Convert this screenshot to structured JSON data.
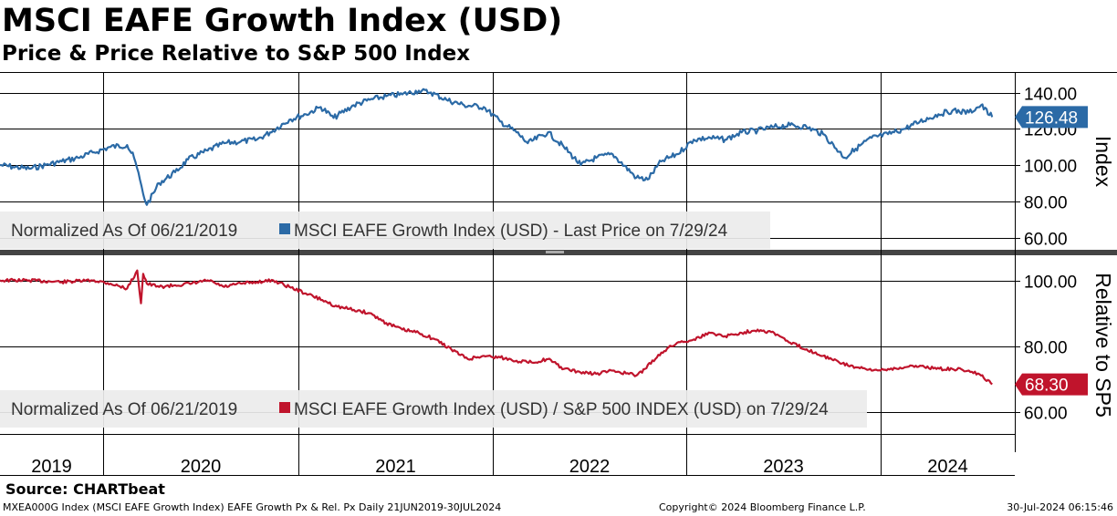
{
  "title": "MSCI EAFE Growth Index (USD)",
  "subtitle": "Price & Price Relative to S&P 500 Index",
  "source": "Source: CHARTbeat",
  "footer": {
    "left": "MXEA000G Index (MSCI EAFE Growth Index) EAFE Growth Px & Rel. Px  Daily 21JUN2019-30JUL2024",
    "center": "Copyright© 2024 Bloomberg Finance L.P.",
    "right": "30-Jul-2024 06:15:46"
  },
  "colors": {
    "price": "#2b6aa6",
    "relative": "#c0142c",
    "grid": "#000000"
  },
  "chart_data": [
    {
      "type": "line",
      "ylabel": "Index",
      "ylim": [
        56,
        148
      ],
      "yticks": [
        60,
        80,
        100,
        120,
        140
      ],
      "ytick_labels": [
        "60.00",
        "80.00",
        "100.00",
        "120.00",
        "140.00"
      ],
      "legend": "Normalized As Of 06/21/2019",
      "legend_series": "MSCI EAFE Growth Index (USD) - Last Price on 7/29/24",
      "last_value_label": "126.48",
      "series": [
        {
          "name": "MSCI EAFE Growth Index (USD) - Last Price on 7/29/24",
          "x": [
            "2019-06-21",
            "2019-07-15",
            "2019-08-15",
            "2019-09-15",
            "2019-10-15",
            "2019-11-15",
            "2019-12-15",
            "2020-01-15",
            "2020-02-15",
            "2020-02-28",
            "2020-03-10",
            "2020-03-16",
            "2020-03-23",
            "2020-04-15",
            "2020-05-15",
            "2020-06-08",
            "2020-07-15",
            "2020-08-15",
            "2020-09-15",
            "2020-10-15",
            "2020-11-09",
            "2020-12-15",
            "2021-01-15",
            "2021-02-12",
            "2021-03-08",
            "2021-04-15",
            "2021-05-15",
            "2021-06-15",
            "2021-07-15",
            "2021-08-15",
            "2021-09-07",
            "2021-10-06",
            "2021-11-08",
            "2021-12-15",
            "2022-01-15",
            "2022-02-15",
            "2022-03-08",
            "2022-04-15",
            "2022-05-15",
            "2022-06-16",
            "2022-07-15",
            "2022-08-15",
            "2022-09-29",
            "2022-10-20",
            "2022-11-15",
            "2022-12-15",
            "2023-01-15",
            "2023-02-15",
            "2023-03-15",
            "2023-04-15",
            "2023-05-15",
            "2023-06-15",
            "2023-07-15",
            "2023-08-15",
            "2023-09-15",
            "2023-10-26",
            "2023-11-15",
            "2023-12-15",
            "2024-01-15",
            "2024-02-15",
            "2024-03-15",
            "2024-04-19",
            "2024-05-15",
            "2024-06-15",
            "2024-07-08",
            "2024-07-29"
          ],
          "values": [
            100,
            99,
            98,
            100,
            102,
            104,
            107,
            110,
            111,
            104,
            92,
            84,
            78,
            90,
            96,
            103,
            108,
            112,
            113,
            114,
            118,
            125,
            128,
            132,
            126,
            133,
            136,
            138,
            139,
            141,
            140,
            136,
            133,
            132,
            124,
            118,
            112,
            118,
            110,
            100,
            104,
            106,
            93,
            92,
            102,
            106,
            114,
            115,
            114,
            118,
            119,
            121,
            122,
            121,
            117,
            104,
            109,
            115,
            117,
            120,
            124,
            128,
            130,
            129,
            133,
            126.48
          ]
        }
      ]
    },
    {
      "type": "line",
      "ylabel": "Relative to SP5",
      "ylim": [
        57,
        108
      ],
      "yticks": [
        60,
        80,
        100
      ],
      "ytick_labels": [
        "60.00",
        "80.00",
        "100.00"
      ],
      "legend": "Normalized As Of 06/21/2019",
      "legend_series": "MSCI EAFE Growth Index (USD) / S&P 500 INDEX (USD) on 7/29/24",
      "last_value_label": "68.30",
      "xtick_labels": [
        "2019",
        "2020",
        "2021",
        "2022",
        "2023",
        "2024"
      ],
      "series": [
        {
          "name": "MSCI EAFE Growth Index (USD) / S&P 500 INDEX (USD) on 7/29/24",
          "x": [
            "2019-06-21",
            "2019-08-15",
            "2019-10-15",
            "2019-12-15",
            "2020-01-15",
            "2020-02-15",
            "2020-03-05",
            "2020-03-12",
            "2020-03-16",
            "2020-03-23",
            "2020-04-15",
            "2020-05-15",
            "2020-06-15",
            "2020-07-15",
            "2020-08-15",
            "2020-09-15",
            "2020-10-15",
            "2020-11-15",
            "2020-12-15",
            "2021-01-15",
            "2021-02-15",
            "2021-03-15",
            "2021-04-15",
            "2021-05-15",
            "2021-06-15",
            "2021-07-15",
            "2021-08-15",
            "2021-09-15",
            "2021-10-15",
            "2021-11-15",
            "2021-12-15",
            "2022-01-15",
            "2022-02-15",
            "2022-03-15",
            "2022-04-15",
            "2022-05-15",
            "2022-06-15",
            "2022-07-15",
            "2022-08-15",
            "2022-09-29",
            "2022-10-15",
            "2022-11-15",
            "2022-12-15",
            "2023-01-15",
            "2023-02-15",
            "2023-03-15",
            "2023-04-15",
            "2023-05-15",
            "2023-06-15",
            "2023-07-15",
            "2023-08-15",
            "2023-09-15",
            "2023-10-15",
            "2023-11-15",
            "2023-12-15",
            "2024-01-15",
            "2024-02-15",
            "2024-03-15",
            "2024-04-15",
            "2024-05-15",
            "2024-06-15",
            "2024-07-08",
            "2024-07-29"
          ],
          "values": [
            100,
            100,
            99.5,
            100,
            99,
            97.5,
            103,
            93,
            102,
            99,
            98,
            98.5,
            99,
            100,
            98,
            99,
            99.5,
            100,
            98,
            96,
            94,
            92,
            91,
            90,
            87,
            85,
            84,
            82,
            79,
            76,
            77,
            76.5,
            75.5,
            75,
            76,
            73,
            72,
            71.5,
            72.5,
            71,
            73,
            78,
            81,
            82,
            84,
            83,
            84,
            85,
            84,
            81,
            79,
            77,
            75,
            73.5,
            72.5,
            73,
            73.5,
            74,
            73,
            73,
            72.5,
            71,
            68.3
          ]
        }
      ]
    }
  ]
}
